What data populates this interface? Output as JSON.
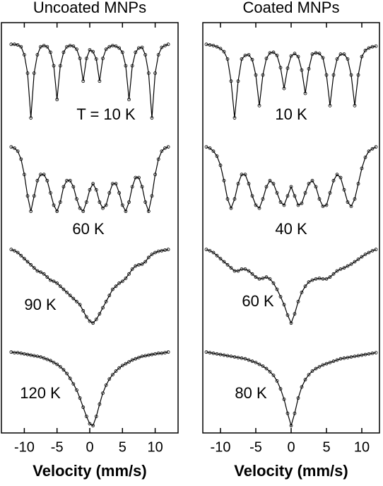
{
  "chart_data": [
    {
      "type": "scatter",
      "title": "Uncoated MNPs",
      "x_label": "Velocity (mm/s)",
      "color": "#000000",
      "xlim": [
        -13.5,
        13.5
      ],
      "xticks": [
        -10,
        -5,
        0,
        5,
        10
      ],
      "x": [
        -12,
        -11.5,
        -11,
        -10.5,
        -10,
        -9.5,
        -9,
        -8.5,
        -8,
        -7.5,
        -7,
        -6.5,
        -6,
        -5.5,
        -5,
        -4.5,
        -4,
        -3.5,
        -3,
        -2.5,
        -2,
        -1.5,
        -1,
        -0.5,
        0,
        0.5,
        1,
        1.5,
        2,
        2.5,
        3,
        3.5,
        4,
        4.5,
        5,
        5.5,
        6,
        6.5,
        7,
        7.5,
        8,
        8.5,
        9,
        9.5,
        10,
        10.5,
        11,
        11.5,
        12
      ],
      "series": [
        {
          "name": "T = 10 K",
          "ylim": [
            86,
            101
          ],
          "values": [
            100,
            100,
            99.9,
            99.6,
            98.3,
            95.3,
            88,
            95.3,
            98.3,
            99.6,
            99.8,
            99.6,
            98.7,
            96.5,
            91,
            96.5,
            98.7,
            99.6,
            99.8,
            99.7,
            99.2,
            97.7,
            94,
            97.7,
            99.1,
            98.8,
            97.6,
            94,
            97.7,
            99.2,
            99.6,
            99.8,
            99.7,
            99.4,
            98.7,
            96.5,
            91,
            96.5,
            98.7,
            99.4,
            99.5,
            98.3,
            95.3,
            88,
            95.3,
            98.3,
            99.5,
            99.8,
            100
          ]
        },
        {
          "name": "60 K",
          "ylim": [
            86,
            101
          ],
          "values": [
            100,
            99.8,
            99.3,
            98,
            95.5,
            92,
            89.5,
            92,
            94.5,
            95.5,
            95.5,
            94.5,
            92.5,
            90.5,
            89.5,
            91,
            93.5,
            94.5,
            94.5,
            93.5,
            91.5,
            90,
            89.5,
            91,
            93,
            94,
            93,
            91,
            90,
            90.5,
            92.5,
            94,
            94,
            92.5,
            90.5,
            89.5,
            91,
            93.5,
            95,
            95,
            93.5,
            91,
            89.5,
            92,
            95.5,
            98,
            99.3,
            99.8,
            100
          ]
        },
        {
          "name": "90 K",
          "ylim": [
            86,
            101
          ],
          "values": [
            100,
            99.8,
            99.5,
            99,
            98.5,
            98,
            97.5,
            97,
            96.5,
            96.3,
            96,
            95.5,
            95,
            94.8,
            94.5,
            94,
            93.5,
            93,
            92.5,
            92,
            91.5,
            91,
            90,
            89,
            88.3,
            88,
            88.6,
            89.5,
            90.5,
            91.5,
            92.5,
            93.5,
            94,
            94.5,
            94.8,
            95.3,
            96,
            96.8,
            97.3,
            97.5,
            97.6,
            98,
            98.7,
            99.2,
            99.5,
            99.7,
            99.8,
            99.9,
            100
          ]
        },
        {
          "name": "120 K",
          "ylim": [
            86,
            101
          ],
          "values": [
            100,
            99.9,
            99.9,
            99.8,
            99.7,
            99.6,
            99.5,
            99.4,
            99.3,
            99.2,
            99,
            98.8,
            98.6,
            98.3,
            98,
            97.6,
            97.1,
            96.5,
            95.7,
            94.8,
            93.8,
            92.5,
            91,
            89.5,
            88.3,
            88,
            89.5,
            91.5,
            93.3,
            94.6,
            95.6,
            96.3,
            96.9,
            97.4,
            97.8,
            98.1,
            98.4,
            98.7,
            98.9,
            99.1,
            99.3,
            99.4,
            99.5,
            99.6,
            99.7,
            99.8,
            99.8,
            99.9,
            100
          ]
        }
      ]
    },
    {
      "type": "scatter",
      "title": "Coated MNPs",
      "x_label": "Velocity (mm/s)",
      "color": "#000000",
      "xlim": [
        -12.5,
        12.5
      ],
      "xticks": [
        -10,
        -5,
        0,
        5,
        10
      ],
      "x": [
        -12,
        -11.5,
        -11,
        -10.5,
        -10,
        -9.5,
        -9,
        -8.5,
        -8,
        -7.5,
        -7,
        -6.5,
        -6,
        -5.5,
        -5,
        -4.5,
        -4,
        -3.5,
        -3,
        -2.5,
        -2,
        -1.5,
        -1,
        -0.5,
        0,
        0.5,
        1,
        1.5,
        2,
        2.5,
        3,
        3.5,
        4,
        4.5,
        5,
        5.5,
        6,
        6.5,
        7,
        7.5,
        8,
        8.5,
        9,
        9.5,
        10,
        10.5,
        11,
        11.5,
        12
      ],
      "series": [
        {
          "name": "10 K",
          "ylim": [
            86,
            101
          ],
          "values": [
            100,
            99.9,
            99.8,
            99.6,
            99.3,
            98.8,
            97.6,
            94,
            88,
            94,
            97.6,
            98.2,
            98.3,
            97.5,
            95,
            90,
            95,
            97.7,
            98.6,
            98.7,
            98.2,
            96.2,
            92.8,
            96.1,
            98.1,
            98.5,
            98,
            95.8,
            92,
            96,
            98.4,
            98.6,
            98.5,
            97.8,
            95,
            90,
            95,
            97.6,
            98.4,
            98.4,
            97.6,
            95,
            90,
            95,
            98,
            99,
            99.4,
            99.6,
            99.7
          ]
        },
        {
          "name": "40 K",
          "ylim": [
            86,
            101
          ],
          "values": [
            100,
            99.8,
            99.3,
            98.5,
            97,
            94.5,
            91.5,
            90,
            91.5,
            94,
            95.5,
            95.5,
            94,
            92,
            90.5,
            90,
            91.5,
            93.5,
            94.5,
            94,
            92.5,
            91,
            90.5,
            92,
            93.5,
            92,
            90.5,
            90.8,
            92.5,
            94,
            94.5,
            93.5,
            91.5,
            90.3,
            90.5,
            92.5,
            94.5,
            95.5,
            95,
            93,
            91,
            90.3,
            91.5,
            94,
            96.5,
            98.3,
            99.3,
            99.7,
            100
          ]
        },
        {
          "name": "60 K",
          "ylim": [
            86,
            101
          ],
          "values": [
            100,
            99.8,
            99.5,
            99,
            98.5,
            98,
            97.5,
            97,
            96.5,
            96.5,
            96.8,
            96.8,
            96.5,
            96,
            95.5,
            95.2,
            95.3,
            95.5,
            95.2,
            94.5,
            93.5,
            92.3,
            91,
            89.3,
            88,
            89.5,
            91.5,
            93,
            94,
            94.7,
            95,
            95.2,
            95.3,
            95.2,
            95.2,
            95.5,
            96,
            96.5,
            96.8,
            97,
            97.3,
            97.6,
            98,
            98.4,
            98.8,
            99.2,
            99.5,
            99.8,
            100
          ]
        },
        {
          "name": "80 K",
          "ylim": [
            86,
            101
          ],
          "values": [
            100,
            99.9,
            99.8,
            99.7,
            99.6,
            99.5,
            99.4,
            99.3,
            99.2,
            99.1,
            99,
            98.9,
            98.7,
            98.5,
            98.3,
            98,
            97.7,
            97.3,
            96.8,
            96.2,
            95.3,
            94,
            92.3,
            90,
            88,
            90,
            92.5,
            94.3,
            95.5,
            96.3,
            96.9,
            97.3,
            97.6,
            97.9,
            98.1,
            98.3,
            98.5,
            98.7,
            98.9,
            99,
            99.1,
            99.2,
            99.3,
            99.4,
            99.5,
            99.6,
            99.7,
            99.8,
            99.9
          ]
        }
      ]
    }
  ]
}
